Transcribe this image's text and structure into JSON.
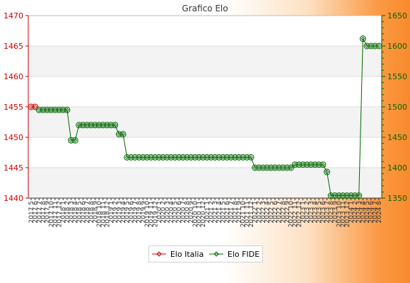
{
  "chart_data": {
    "type": "line",
    "title": "Grafico Elo",
    "y_left": {
      "ylim": [
        1440,
        1470
      ],
      "ticks": [
        1440,
        1445,
        1450,
        1455,
        1460,
        1465,
        1470
      ],
      "color": "#cc0000"
    },
    "y_right": {
      "ylim": [
        1350,
        1650
      ],
      "ticks": [
        1350,
        1400,
        1450,
        1500,
        1550,
        1600,
        1650
      ],
      "color": "#006600"
    },
    "x_count": 88,
    "x_labels": [
      "2017 5",
      "2017 6",
      "2017 7",
      "2017 8",
      "2017 9",
      "2017 10",
      "2017 11",
      "2017 12",
      "2018 1",
      "2018 2",
      "2018 3",
      "2018 4",
      "2018 5",
      "2018 6",
      "2018 7",
      "2018 8",
      "2018 9",
      "2018 10",
      "2018 11",
      "2018 12",
      "2019 1",
      "2019 2",
      "2019 3",
      "2019 4",
      "2019 5",
      "2019 6",
      "2019 7",
      "2019 8",
      "2019 9",
      "2019 10",
      "2019 11",
      "2019 12",
      "2020 1",
      "2020 2",
      "2020 3",
      "2020 4",
      "2020 5",
      "2020 6",
      "2020 7",
      "2020 8",
      "2020 9",
      "2020 10",
      "2020 11",
      "2020 12",
      "2021 1",
      "2021 2",
      "2021 3",
      "2021 4",
      "2021 5",
      "2021 6",
      "2021 7",
      "2021 8",
      "2021 9",
      "2021 10",
      "2021 11",
      "2021 12",
      "2022 1",
      "2022 2",
      "2022 3",
      "2022 4",
      "2022 5",
      "2022 6",
      "2022 7",
      "2022 8",
      "2022 9",
      "2022 10",
      "2022 11",
      "2022 12",
      "2023 1",
      "2023 2",
      "2023 3",
      "2023 4",
      "2023 5",
      "2023 6",
      "2023 7",
      "2023 8",
      "2023 9",
      "2023 10",
      "2023 11",
      "2023 12",
      "2024 1",
      "2024 2",
      "2024 3",
      "2024 4",
      "2024 5",
      "2024 6",
      "2024 7",
      "2024 8"
    ],
    "series": [
      {
        "name": "Elo Italia",
        "axis": "left",
        "color": "#cc0000",
        "x_index": [
          0,
          1
        ],
        "values": [
          1455,
          1455
        ]
      },
      {
        "name": "Elo FIDE",
        "axis": "right",
        "color": "#006600",
        "x_index": [
          2,
          3,
          4,
          5,
          6,
          7,
          8,
          9,
          10,
          11,
          12,
          13,
          14,
          15,
          16,
          17,
          18,
          19,
          20,
          21,
          22,
          23,
          24,
          25,
          26,
          27,
          28,
          29,
          30,
          31,
          32,
          33,
          34,
          35,
          36,
          37,
          38,
          39,
          40,
          41,
          42,
          43,
          44,
          45,
          46,
          47,
          48,
          49,
          50,
          51,
          52,
          53,
          54,
          55,
          56,
          57,
          58,
          59,
          60,
          61,
          62,
          63,
          64,
          65,
          66,
          67,
          68,
          69,
          70,
          71,
          72,
          73,
          74,
          75,
          76,
          77,
          78,
          79,
          80,
          81,
          82,
          83,
          84,
          85,
          86,
          87
        ],
        "values": [
          1495,
          1495,
          1495,
          1495,
          1495,
          1495,
          1495,
          1495,
          1445,
          1445,
          1470,
          1470,
          1470,
          1470,
          1470,
          1470,
          1470,
          1470,
          1470,
          1470,
          1455,
          1455,
          1417,
          1417,
          1417,
          1417,
          1417,
          1417,
          1417,
          1417,
          1417,
          1417,
          1417,
          1417,
          1417,
          1417,
          1417,
          1417,
          1417,
          1417,
          1417,
          1417,
          1417,
          1417,
          1417,
          1417,
          1417,
          1417,
          1417,
          1417,
          1417,
          1417,
          1417,
          1417,
          1400,
          1400,
          1400,
          1400,
          1400,
          1400,
          1400,
          1400,
          1400,
          1400,
          1405,
          1405,
          1405,
          1405,
          1405,
          1405,
          1405,
          1405,
          1393,
          1354,
          1354,
          1354,
          1354,
          1354,
          1354,
          1354,
          1354,
          1612,
          1600,
          1600,
          1600,
          1600
        ]
      }
    ],
    "legend_position": "bottom-center",
    "grid": true
  }
}
